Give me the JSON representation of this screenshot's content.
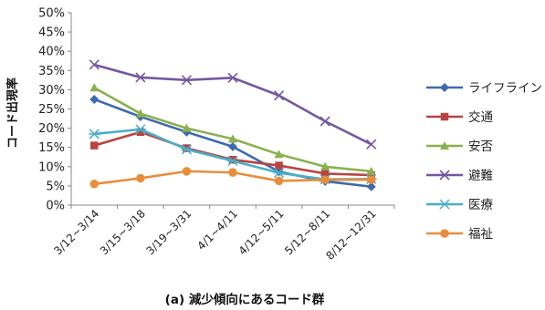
{
  "chart_data": {
    "type": "line",
    "title": "",
    "caption": "(a) 減少傾向にあるコード群",
    "xlabel": "",
    "ylabel": "コード出現率",
    "ylim": [
      0,
      50
    ],
    "yticks": [
      "0%",
      "5%",
      "10%",
      "15%",
      "20%",
      "25%",
      "30%",
      "35%",
      "40%",
      "45%",
      "50%"
    ],
    "categories": [
      "3/12~3/14",
      "3/15~3/18",
      "3/19~3/31",
      "4/1~4/11",
      "4/12~5/11",
      "5/12~8/11",
      "8/12~12/31"
    ],
    "legend_position": "right",
    "grid": false,
    "series": [
      {
        "name": "ライフライン",
        "color": "#3e6aae",
        "marker": "diamond",
        "values": [
          27.5,
          23,
          19,
          15.2,
          8.7,
          6.2,
          4.8
        ]
      },
      {
        "name": "交通",
        "color": "#b84442",
        "marker": "square",
        "values": [
          15.5,
          19,
          14.8,
          11.8,
          10.3,
          8.2,
          7.8
        ]
      },
      {
        "name": "安否",
        "color": "#8bb04f",
        "marker": "triangle",
        "values": [
          30.5,
          23.8,
          20,
          17.2,
          13.2,
          10,
          8.8
        ]
      },
      {
        "name": "避難",
        "color": "#7557a0",
        "marker": "x",
        "values": [
          36.5,
          33.2,
          32.5,
          33.1,
          28.5,
          21.8,
          15.8
        ]
      },
      {
        "name": "医療",
        "color": "#4aaec6",
        "marker": "asterisk",
        "values": [
          18.5,
          19.7,
          14.5,
          11.5,
          8.4,
          6.7,
          6.8
        ]
      },
      {
        "name": "福祉",
        "color": "#e88e3b",
        "marker": "circle",
        "values": [
          5.5,
          7,
          8.8,
          8.5,
          6.3,
          6.6,
          6.6
        ]
      }
    ]
  }
}
